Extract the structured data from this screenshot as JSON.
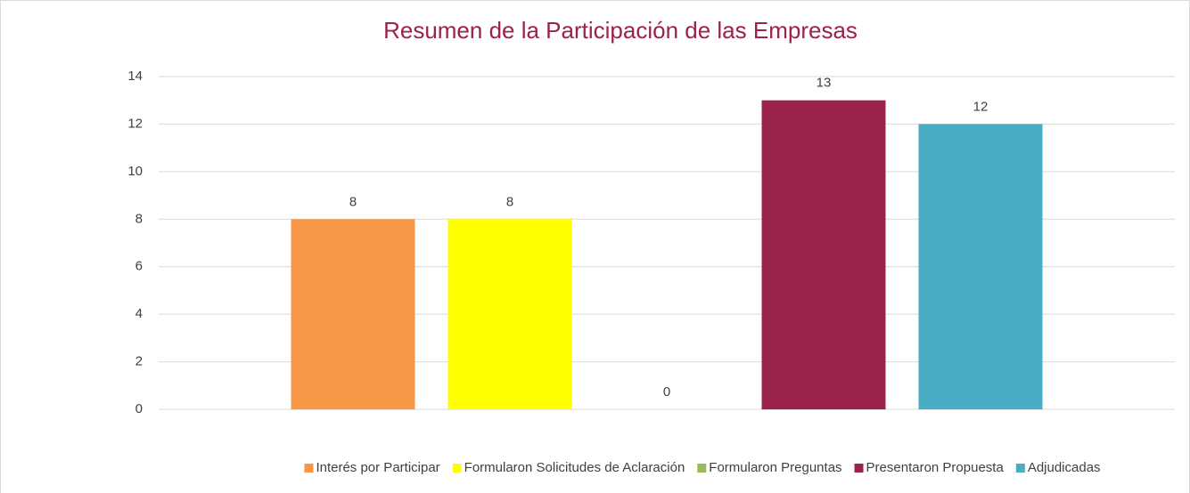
{
  "chart_data": {
    "type": "bar",
    "title": "Resumen de la Participación de las Empresas",
    "categories": [
      null
    ],
    "series": [
      {
        "name": "Interés por Participar",
        "color": "#f79646",
        "values": [
          8
        ]
      },
      {
        "name": "Formularon Solicitudes de Aclaración",
        "color": "#ffff00",
        "values": [
          8
        ]
      },
      {
        "name": "Formularon Preguntas",
        "color": "#9bbb59",
        "values": [
          0
        ]
      },
      {
        "name": "Presentaron Propuesta",
        "color": "#9b2248",
        "values": [
          13
        ]
      },
      {
        "name": "Adjudicadas",
        "color": "#4bacc6",
        "values": [
          12
        ]
      }
    ],
    "ylim": [
      0,
      14
    ],
    "yticks": [
      0,
      2,
      4,
      6,
      8,
      10,
      12,
      14
    ],
    "grid": true,
    "legend": "bottom"
  }
}
